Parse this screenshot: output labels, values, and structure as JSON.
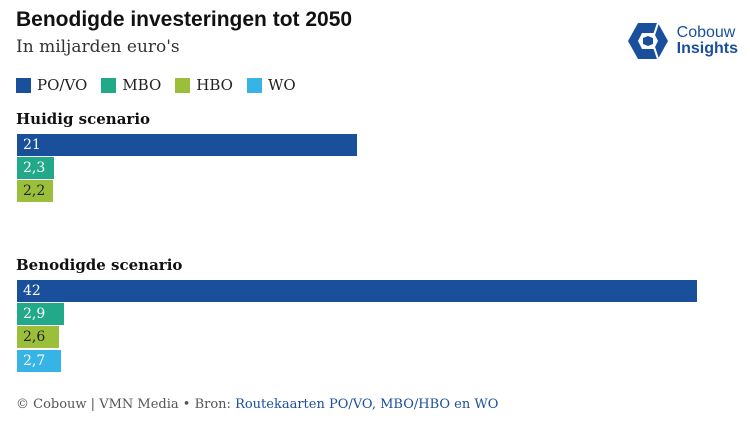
{
  "header": {
    "title": "Benodigde investeringen tot 2050",
    "subtitle": "In miljarden euro's"
  },
  "logo": {
    "line1": "Cobouw",
    "line2": "Insights",
    "icon": "cube-icon",
    "color": "#1a4f9c"
  },
  "chart_data": {
    "type": "bar",
    "orientation": "horizontal",
    "series_legend": [
      {
        "name": "PO/VO",
        "color": "#1a4f9c"
      },
      {
        "name": "MBO",
        "color": "#21a98a"
      },
      {
        "name": "HBO",
        "color": "#9bbf3a"
      },
      {
        "name": "WO",
        "color": "#36b4e5"
      }
    ],
    "legend_position": "top-left",
    "grid": false,
    "xlim": [
      0,
      42
    ],
    "groups": [
      {
        "title": "Huidig scenario",
        "bars": [
          {
            "series": "PO/VO",
            "value": 21,
            "label": "21"
          },
          {
            "series": "MBO",
            "value": 2.3,
            "label": "2,3"
          },
          {
            "series": "HBO",
            "value": 2.2,
            "label": "2,2"
          }
        ]
      },
      {
        "title": "Benodigde scenario",
        "bars": [
          {
            "series": "PO/VO",
            "value": 42,
            "label": "42"
          },
          {
            "series": "MBO",
            "value": 2.9,
            "label": "2,9"
          },
          {
            "series": "HBO",
            "value": 2.6,
            "label": "2,6"
          },
          {
            "series": "WO",
            "value": 2.7,
            "label": "2,7"
          }
        ]
      }
    ]
  },
  "footer": {
    "text": "© Cobouw | VMN Media • Bron: ",
    "link": "Routekaarten PO/VO, MBO/HBO en WO"
  }
}
